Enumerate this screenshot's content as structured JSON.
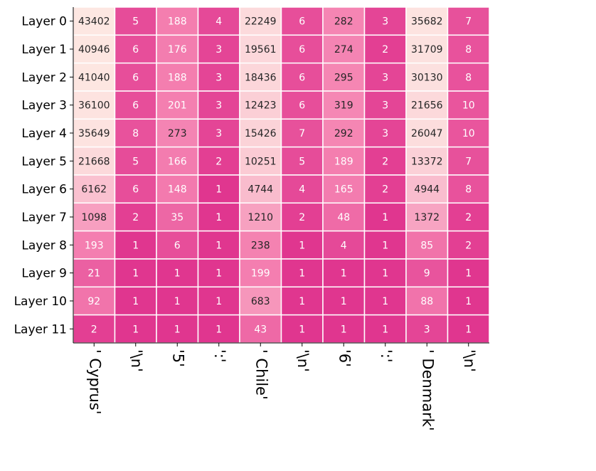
{
  "chart_data": {
    "type": "heatmap",
    "title": "",
    "xlabel": "",
    "ylabel": "",
    "rows": [
      "Layer 0",
      "Layer 1",
      "Layer 2",
      "Layer 3",
      "Layer 4",
      "Layer 5",
      "Layer 6",
      "Layer 7",
      "Layer 8",
      "Layer 9",
      "Layer 10",
      "Layer 11"
    ],
    "columns": [
      "' Cyprus'",
      "'\\n'",
      "'5'",
      "':'",
      "' Chile'",
      "'\\n'",
      "'6'",
      "':'",
      "' Denmark'",
      "'\\n'"
    ],
    "values": [
      [
        43402,
        5,
        188,
        4,
        22249,
        6,
        282,
        3,
        35682,
        7
      ],
      [
        40946,
        6,
        176,
        3,
        19561,
        6,
        274,
        2,
        31709,
        8
      ],
      [
        41040,
        6,
        188,
        3,
        18436,
        6,
        295,
        3,
        30130,
        8
      ],
      [
        36100,
        6,
        201,
        3,
        12423,
        6,
        319,
        3,
        21656,
        10
      ],
      [
        35649,
        8,
        273,
        3,
        15426,
        7,
        292,
        3,
        26047,
        10
      ],
      [
        21668,
        5,
        166,
        2,
        10251,
        5,
        189,
        2,
        13372,
        7
      ],
      [
        6162,
        6,
        148,
        1,
        4744,
        4,
        165,
        2,
        4944,
        8
      ],
      [
        1098,
        2,
        35,
        1,
        1210,
        2,
        48,
        1,
        1372,
        2
      ],
      [
        193,
        1,
        6,
        1,
        238,
        1,
        4,
        1,
        85,
        2
      ],
      [
        21,
        1,
        1,
        1,
        199,
        1,
        1,
        1,
        9,
        1
      ],
      [
        92,
        1,
        1,
        1,
        683,
        1,
        1,
        1,
        88,
        1
      ],
      [
        2,
        1,
        1,
        1,
        43,
        1,
        1,
        1,
        3,
        1
      ]
    ],
    "colorscale": {
      "low": "#e0368f",
      "mid": "#f47fb0",
      "high": "#fde7e2",
      "scale": "log"
    },
    "cell_border_color": "#ffffff",
    "text_dark": "#262626",
    "text_light": "#ffffff"
  }
}
